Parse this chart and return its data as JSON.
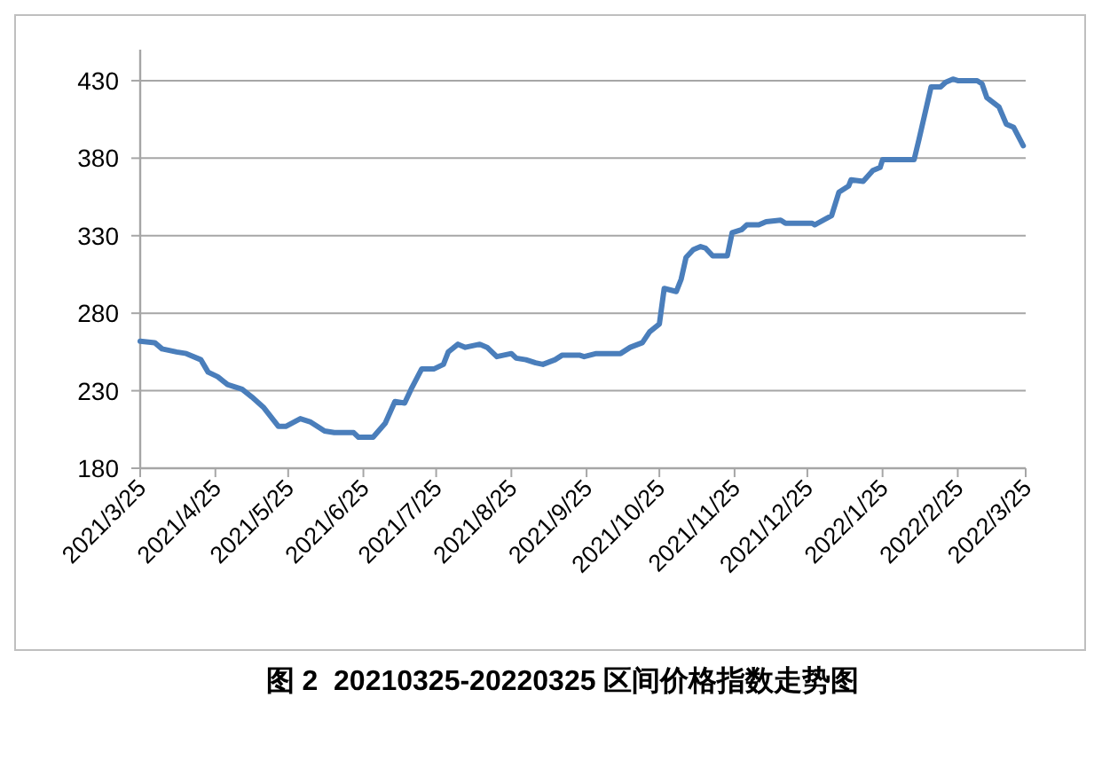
{
  "chart_data": {
    "type": "line",
    "title": "图 2  20210325-20220325 区间价格指数走势图",
    "x": [
      "2021-03-25",
      "2021-03-31",
      "2021-04-03",
      "2021-04-09",
      "2021-04-13",
      "2021-04-19",
      "2021-04-22",
      "2021-04-26",
      "2021-04-30",
      "2021-05-06",
      "2021-05-10",
      "2021-05-15",
      "2021-05-17",
      "2021-05-21",
      "2021-05-24",
      "2021-05-30",
      "2021-06-03",
      "2021-06-09",
      "2021-06-13",
      "2021-06-21",
      "2021-06-23",
      "2021-06-29",
      "2021-07-04",
      "2021-07-08",
      "2021-07-12",
      "2021-07-15",
      "2021-07-19",
      "2021-07-24",
      "2021-07-28",
      "2021-07-30",
      "2021-08-03",
      "2021-08-06",
      "2021-08-12",
      "2021-08-15",
      "2021-08-19",
      "2021-08-25",
      "2021-08-27",
      "2021-08-31",
      "2021-09-04",
      "2021-09-07",
      "2021-09-12",
      "2021-09-15",
      "2021-09-22",
      "2021-09-24",
      "2021-09-29",
      "2021-10-09",
      "2021-10-13",
      "2021-10-18",
      "2021-10-21",
      "2021-10-25",
      "2021-10-27",
      "2021-11-01",
      "2021-11-03",
      "2021-11-05",
      "2021-11-08",
      "2021-11-11",
      "2021-11-13",
      "2021-11-16",
      "2021-11-22",
      "2021-11-24",
      "2021-11-28",
      "2021-11-30",
      "2021-12-05",
      "2021-12-08",
      "2021-12-14",
      "2021-12-16",
      "2021-12-27",
      "2021-12-28",
      "2022-01-04",
      "2022-01-07",
      "2022-01-11",
      "2022-01-12",
      "2022-01-17",
      "2022-01-21",
      "2022-01-24",
      "2022-01-25",
      "2022-02-07",
      "2022-02-09",
      "2022-02-14",
      "2022-02-18",
      "2022-02-20",
      "2022-02-23",
      "2022-02-25",
      "2022-03-05",
      "2022-03-07",
      "2022-03-09",
      "2022-03-14",
      "2022-03-17",
      "2022-03-20",
      "2022-03-24"
    ],
    "series": [
      {
        "color": "#4a7ebb",
        "values": [
          262,
          261,
          257,
          255,
          254,
          250,
          242,
          239,
          234,
          231,
          226,
          219,
          215,
          207,
          207,
          212,
          210,
          204,
          203,
          203,
          200,
          200,
          209,
          223,
          222,
          232,
          244,
          244,
          247,
          255,
          260,
          258,
          260,
          258,
          252,
          254,
          251,
          250,
          248,
          247,
          250,
          253,
          253,
          252,
          254,
          254,
          258,
          261,
          268,
          273,
          296,
          294,
          302,
          316,
          321,
          323,
          322,
          317,
          317,
          332,
          334,
          337,
          337,
          339,
          340,
          338,
          338,
          337,
          343,
          358,
          362,
          366,
          365,
          372,
          374,
          379,
          379,
          392,
          426,
          426,
          429,
          431,
          430,
          430,
          428,
          419,
          413,
          402,
          400,
          388
        ]
      }
    ],
    "xlim": [
      "2021-03-25",
      "2022-03-25"
    ],
    "xticks": [
      {
        "value": "2021-03-25",
        "label": "2021/3/25"
      },
      {
        "value": "2021-04-25",
        "label": "2021/4/25"
      },
      {
        "value": "2021-05-25",
        "label": "2021/5/25"
      },
      {
        "value": "2021-06-25",
        "label": "2021/6/25"
      },
      {
        "value": "2021-07-25",
        "label": "2021/7/25"
      },
      {
        "value": "2021-08-25",
        "label": "2021/8/25"
      },
      {
        "value": "2021-09-25",
        "label": "2021/9/25"
      },
      {
        "value": "2021-10-25",
        "label": "2021/10/25"
      },
      {
        "value": "2021-11-25",
        "label": "2021/11/25"
      },
      {
        "value": "2021-12-25",
        "label": "2021/12/25"
      },
      {
        "value": "2022-01-25",
        "label": "2022/1/25"
      },
      {
        "value": "2022-02-25",
        "label": "2022/2/25"
      },
      {
        "value": "2022-03-25",
        "label": "2022/3/25"
      }
    ],
    "ylim": [
      180,
      450
    ],
    "yticks": [
      180,
      230,
      280,
      330,
      380,
      430
    ],
    "grid": "y",
    "marker": "none",
    "line_style": "solid"
  }
}
